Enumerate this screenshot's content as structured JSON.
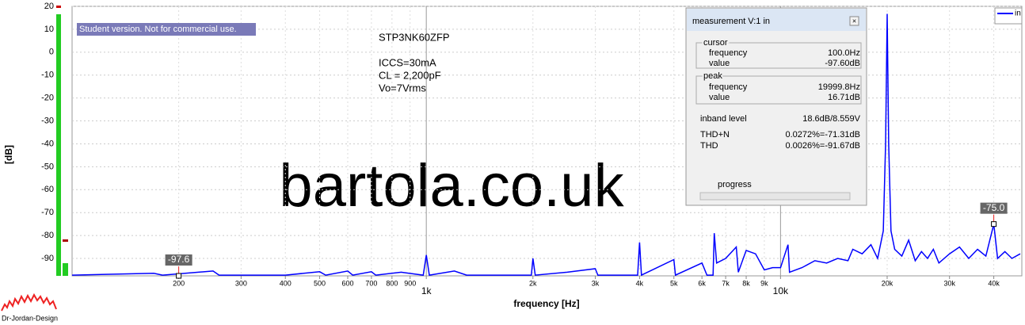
{
  "chart_data": {
    "type": "line",
    "x_scale": "log",
    "ylabel": "[dB]",
    "xlabel": "frequency [Hz]",
    "notice": "Student version. Not for commercial use.",
    "annotations": [
      "STP3NK60ZFP",
      "ICCS=30mA",
      "CL = 2,200pF",
      "Vo=7Vrms"
    ],
    "watermark": "bartola.co.uk",
    "logo": "Dr-Jordan-Design",
    "legend": "upper right",
    "grid": true,
    "xlim": [
      100,
      48000
    ],
    "ylim": [
      -97.6,
      20
    ],
    "yticks": [
      20,
      10,
      0,
      -10,
      -20,
      -30,
      -40,
      -50,
      -60,
      -70,
      -80,
      -90
    ],
    "xticks": [
      200,
      300,
      400,
      500,
      600,
      700,
      800,
      900,
      {
        "value": 1000,
        "label": "1k"
      },
      {
        "value": 2000,
        "label": "2k"
      },
      {
        "value": 3000,
        "label": "3k"
      },
      {
        "value": 4000,
        "label": "4k"
      },
      {
        "value": 5000,
        "label": "5k"
      },
      {
        "value": 6000,
        "label": "6k"
      },
      {
        "value": 7000,
        "label": "7k"
      },
      {
        "value": 8000,
        "label": "8k"
      },
      {
        "value": 9000,
        "label": "9k"
      },
      {
        "value": 10000,
        "label": "10k"
      },
      {
        "value": 20000,
        "label": "20k"
      },
      {
        "value": 30000,
        "label": "30k"
      },
      {
        "value": 40000,
        "label": "40k"
      }
    ],
    "series": [
      {
        "name": "in",
        "color": "#0000ff",
        "x": [
          100,
          170,
          180,
          250,
          260,
          400,
          500,
          520,
          600,
          620,
          700,
          720,
          850,
          980,
          1000,
          1020,
          1200,
          1300,
          1980,
          2000,
          2030,
          2500,
          3000,
          3050,
          3950,
          4000,
          4050,
          5000,
          5050,
          6000,
          6200,
          6450,
          6500,
          6600,
          7000,
          7500,
          7600,
          8000,
          8500,
          9000,
          9500,
          10000,
          10500,
          10600,
          11500,
          12500,
          13500,
          14500,
          15500,
          16000,
          17000,
          18000,
          18800,
          19500,
          19800,
          20000,
          20200,
          20500,
          21000,
          22000,
          23000,
          24000,
          25000,
          26000,
          27000,
          28000,
          30000,
          32000,
          34000,
          36000,
          38000,
          40000,
          41000,
          43000,
          45000,
          47500
        ],
        "values": [
          -97.3,
          -96.5,
          -97.3,
          -95.5,
          -97.3,
          -97.3,
          -95.8,
          -97.3,
          -95.5,
          -97.3,
          -95.8,
          -97.3,
          -96,
          -97.3,
          -88.5,
          -97.3,
          -95.5,
          -97.3,
          -97.3,
          -90,
          -97.3,
          -96,
          -94.5,
          -97.3,
          -97.3,
          -83,
          -97.3,
          -90.5,
          -97.3,
          -92,
          -97.3,
          -97.3,
          -79,
          -92,
          -90,
          -85,
          -96,
          -86.5,
          -88,
          -95,
          -94,
          -94,
          -84,
          -96,
          -94,
          -91,
          -92,
          -90,
          -91,
          -86,
          -88,
          -84,
          -90,
          -78,
          -40,
          16.71,
          -40,
          -78,
          -86,
          -89,
          -82,
          -91,
          -87,
          -90,
          -86,
          -92,
          -88,
          -85,
          -90,
          -86,
          -89,
          -75,
          -90,
          -87,
          -90,
          -88
        ]
      }
    ],
    "markers": [
      {
        "x": 200,
        "value": -97.6,
        "label": "-97.6"
      },
      {
        "x": 40000,
        "value": -75,
        "label": "-75.0"
      }
    ],
    "panel": {
      "title": "measurement V:1 in",
      "cursor": {
        "title": "cursor",
        "frequency_label": "frequency",
        "frequency": "100.0Hz",
        "value_label": "value",
        "value": "-97.60dB"
      },
      "peak": {
        "title": "peak",
        "frequency_label": "frequency",
        "frequency": "19999.8Hz",
        "value_label": "value",
        "value": "16.71dB"
      },
      "inband_label": "inband level",
      "inband": "18.6dB/8.559V",
      "thdn_label": "THD+N",
      "thdn": "0.0272%=-71.31dB",
      "thd_label": "THD",
      "thd": "0.0026%=-91.67dB",
      "progress": "progress"
    }
  }
}
